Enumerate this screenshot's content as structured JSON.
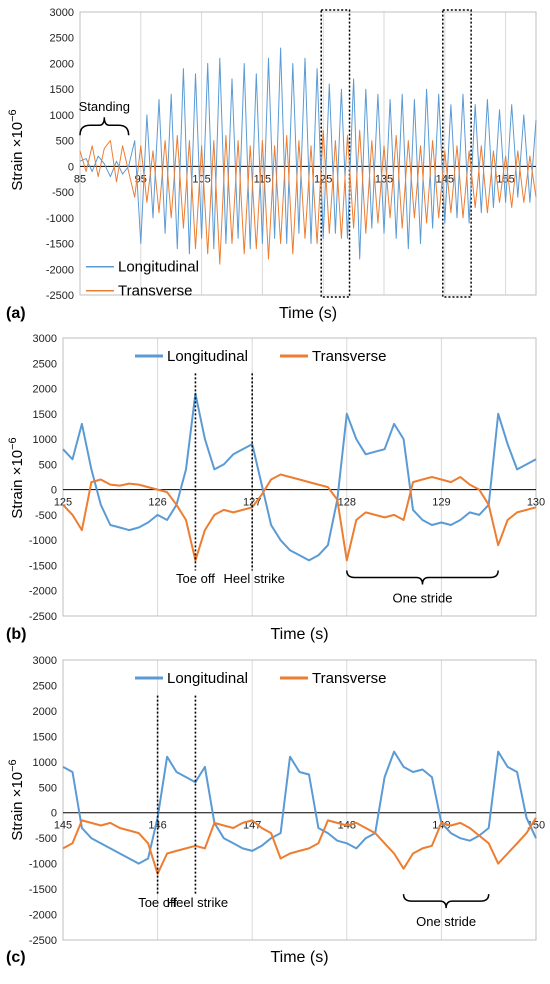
{
  "colors": {
    "longitudinal": "#5b9bd5",
    "transverse": "#ed7d31"
  },
  "chart_data": [
    {
      "panel_label": "(a)",
      "type": "line",
      "ylabel_text": "Strain ×10",
      "ylabel_exp": "−6",
      "xlabel": "Time (s)",
      "xlim": [
        85,
        160
      ],
      "ylim": [
        -2500,
        3000
      ],
      "y_ticks": [
        3000,
        2500,
        2000,
        1500,
        1000,
        500,
        0,
        -500,
        -1000,
        -1500,
        -2000,
        -2500
      ],
      "x_ticks": [
        85,
        95,
        105,
        115,
        125,
        135,
        145,
        155
      ],
      "grid": "vertical",
      "legend": {
        "placement": "bottom-left",
        "entries": [
          "Longitudinal",
          "Transverse"
        ]
      },
      "annotations": {
        "standing": "Standing",
        "standing_range": [
          85,
          93
        ],
        "boxes": [
          [
            125,
            129
          ],
          [
            145,
            149
          ]
        ]
      },
      "series": [
        {
          "name": "Longitudinal",
          "description": "Standing phase near zero (85-93 s), then walking with stride period ~1.3 s; peaks reach 1000-2500",
          "x": [
            85,
            86,
            87,
            88,
            89,
            90,
            91,
            92,
            93,
            94,
            95,
            96,
            97,
            98,
            99,
            100,
            101,
            102,
            103,
            104,
            105,
            106,
            107,
            108,
            109,
            110,
            111,
            112,
            113,
            114,
            115,
            116,
            117,
            118,
            119,
            120,
            121,
            122,
            123,
            124,
            125,
            126,
            127,
            128,
            129,
            130,
            131,
            132,
            133,
            134,
            135,
            136,
            137,
            138,
            139,
            140,
            141,
            142,
            143,
            144,
            145,
            146,
            147,
            148,
            149,
            150,
            151,
            152,
            153,
            154,
            155,
            156,
            157,
            158,
            159,
            160
          ],
          "y": [
            100,
            150,
            -100,
            200,
            50,
            -200,
            100,
            -150,
            0,
            500,
            -1500,
            1000,
            -1000,
            1300,
            -1300,
            1400,
            -1600,
            1900,
            -1700,
            1800,
            -1400,
            2000,
            -1600,
            2100,
            -1500,
            1700,
            -1400,
            2000,
            -1600,
            1800,
            -1500,
            2100,
            -1400,
            2300,
            -1500,
            2000,
            -1300,
            2100,
            -1500,
            1900,
            -1400,
            1600,
            -1300,
            1500,
            -1400,
            1700,
            -1800,
            1500,
            -1200,
            1400,
            -1300,
            1300,
            -1400,
            1400,
            -1600,
            1300,
            -1500,
            1500,
            -1200,
            1400,
            -1100,
            1200,
            -1000,
            1400,
            -1100,
            1200,
            -900,
            1300,
            -800,
            1100,
            -700,
            1200,
            -600,
            1000,
            -700,
            900
          ]
        },
        {
          "name": "Transverse",
          "description": "Standing phase noisy around 0 (up to ~500 at ~90 s), then walking oscillation roughly anti-phase to longitudinal",
          "x": [
            85,
            86,
            87,
            88,
            89,
            90,
            91,
            92,
            93,
            94,
            95,
            96,
            97,
            98,
            99,
            100,
            101,
            102,
            103,
            104,
            105,
            106,
            107,
            108,
            109,
            110,
            111,
            112,
            113,
            114,
            115,
            116,
            117,
            118,
            119,
            120,
            121,
            122,
            123,
            124,
            125,
            126,
            127,
            128,
            129,
            130,
            131,
            132,
            133,
            134,
            135,
            136,
            137,
            138,
            139,
            140,
            141,
            142,
            143,
            144,
            145,
            146,
            147,
            148,
            149,
            150,
            151,
            152,
            153,
            154,
            155,
            156,
            157,
            158,
            159,
            160
          ],
          "y": [
            300,
            -100,
            400,
            -200,
            350,
            500,
            -300,
            400,
            -100,
            -600,
            400,
            -700,
            300,
            -900,
            500,
            -1000,
            600,
            -1200,
            500,
            -1600,
            400,
            -1700,
            500,
            -1900,
            600,
            -1500,
            500,
            -1700,
            400,
            -1600,
            500,
            -1800,
            400,
            -1500,
            600,
            -1700,
            500,
            -1400,
            400,
            -1500,
            700,
            -1300,
            500,
            -1400,
            600,
            -1200,
            700,
            -1300,
            500,
            -1100,
            400,
            -1000,
            600,
            -1200,
            500,
            -1000,
            400,
            -1100,
            500,
            -1000,
            300,
            -900,
            400,
            -1000,
            300,
            -800,
            400,
            -900,
            300,
            -700,
            200,
            -800,
            300,
            -700,
            200,
            -600
          ]
        }
      ]
    },
    {
      "panel_label": "(b)",
      "type": "line",
      "ylabel_text": "Strain ×10",
      "ylabel_exp": "−6",
      "xlabel": "Time (s)",
      "xlim": [
        125,
        130
      ],
      "ylim": [
        -2500,
        3000
      ],
      "y_ticks": [
        3000,
        2500,
        2000,
        1500,
        1000,
        500,
        0,
        -500,
        -1000,
        -1500,
        -2000,
        -2500
      ],
      "x_ticks": [
        125,
        126,
        127,
        128,
        129,
        130
      ],
      "grid": "vertical",
      "legend": {
        "placement": "top",
        "entries": [
          "Longitudinal",
          "Transverse"
        ]
      },
      "annotations": {
        "toe_off": "Toe off",
        "toe_off_x": 126.4,
        "heel_strike": "Heel strike",
        "heel_strike_x": 127.0,
        "stride": "One stride",
        "stride_range": [
          128.0,
          129.6
        ]
      },
      "series": [
        {
          "name": "Longitudinal",
          "x": [
            125.0,
            125.1,
            125.2,
            125.3,
            125.4,
            125.5,
            125.6,
            125.7,
            125.8,
            125.9,
            126.0,
            126.1,
            126.2,
            126.3,
            126.4,
            126.5,
            126.6,
            126.7,
            126.8,
            126.9,
            127.0,
            127.1,
            127.2,
            127.3,
            127.4,
            127.5,
            127.6,
            127.7,
            127.8,
            127.9,
            128.0,
            128.1,
            128.2,
            128.3,
            128.4,
            128.5,
            128.6,
            128.7,
            128.8,
            128.9,
            129.0,
            129.1,
            129.2,
            129.3,
            129.4,
            129.5,
            129.6,
            129.7,
            129.8,
            129.9,
            130.0
          ],
          "y": [
            800,
            600,
            1300,
            400,
            -300,
            -700,
            -750,
            -800,
            -750,
            -650,
            -500,
            -600,
            -300,
            400,
            1900,
            1000,
            400,
            500,
            700,
            800,
            900,
            100,
            -700,
            -1000,
            -1200,
            -1300,
            -1400,
            -1300,
            -1100,
            -200,
            1500,
            1000,
            700,
            750,
            800,
            1300,
            1000,
            -400,
            -600,
            -700,
            -650,
            -700,
            -600,
            -450,
            -500,
            -300,
            1500,
            900,
            400,
            500,
            600
          ]
        },
        {
          "name": "Transverse",
          "x": [
            125.0,
            125.1,
            125.2,
            125.3,
            125.4,
            125.5,
            125.6,
            125.7,
            125.8,
            125.9,
            126.0,
            126.1,
            126.2,
            126.3,
            126.4,
            126.5,
            126.6,
            126.7,
            126.8,
            126.9,
            127.0,
            127.1,
            127.2,
            127.3,
            127.4,
            127.5,
            127.6,
            127.7,
            127.8,
            127.9,
            128.0,
            128.1,
            128.2,
            128.3,
            128.4,
            128.5,
            128.6,
            128.7,
            128.8,
            128.9,
            129.0,
            129.1,
            129.2,
            129.3,
            129.4,
            129.5,
            129.6,
            129.7,
            129.8,
            129.9,
            130.0
          ],
          "y": [
            -300,
            -500,
            -800,
            150,
            200,
            100,
            80,
            120,
            100,
            50,
            0,
            -50,
            -300,
            -600,
            -1400,
            -800,
            -500,
            -400,
            -450,
            -400,
            -350,
            -100,
            200,
            300,
            250,
            200,
            150,
            100,
            50,
            -200,
            -1400,
            -600,
            -450,
            -500,
            -550,
            -500,
            -600,
            150,
            200,
            250,
            200,
            150,
            250,
            100,
            0,
            -300,
            -1100,
            -600,
            -450,
            -400,
            -350
          ]
        }
      ]
    },
    {
      "panel_label": "(c)",
      "type": "line",
      "ylabel_text": "Strain ×10",
      "ylabel_exp": "−6",
      "xlabel": "Time (s)",
      "xlim": [
        145,
        150
      ],
      "ylim": [
        -2500,
        3000
      ],
      "y_ticks": [
        3000,
        2500,
        2000,
        1500,
        1000,
        500,
        0,
        -500,
        -1000,
        -1500,
        -2000,
        -2500
      ],
      "x_ticks": [
        145,
        146,
        147,
        148,
        149,
        150
      ],
      "grid": "vertical",
      "legend": {
        "placement": "top",
        "entries": [
          "Longitudinal",
          "Transverse"
        ]
      },
      "annotations": {
        "toe_off": "Toe off",
        "toe_off_x": 146.0,
        "heel_strike": "Heel strike",
        "heel_strike_x": 146.4,
        "stride": "One stride",
        "stride_range": [
          148.6,
          149.5
        ]
      },
      "series": [
        {
          "name": "Longitudinal",
          "x": [
            145.0,
            145.1,
            145.2,
            145.3,
            145.4,
            145.5,
            145.6,
            145.7,
            145.8,
            145.9,
            146.0,
            146.1,
            146.2,
            146.3,
            146.4,
            146.5,
            146.6,
            146.7,
            146.8,
            146.9,
            147.0,
            147.1,
            147.2,
            147.3,
            147.4,
            147.5,
            147.6,
            147.7,
            147.8,
            147.9,
            148.0,
            148.1,
            148.2,
            148.3,
            148.4,
            148.5,
            148.6,
            148.7,
            148.8,
            148.9,
            149.0,
            149.1,
            149.2,
            149.3,
            149.4,
            149.5,
            149.6,
            149.7,
            149.8,
            149.9,
            150.0
          ],
          "y": [
            900,
            800,
            -300,
            -500,
            -600,
            -700,
            -800,
            -900,
            -1000,
            -900,
            -100,
            1100,
            800,
            700,
            600,
            900,
            -200,
            -500,
            -600,
            -700,
            -750,
            -650,
            -500,
            -400,
            1100,
            800,
            750,
            -300,
            -400,
            -550,
            -600,
            -700,
            -500,
            -400,
            700,
            1200,
            900,
            800,
            850,
            700,
            -200,
            -400,
            -500,
            -550,
            -450,
            -300,
            1200,
            900,
            800,
            -100,
            -500
          ]
        },
        {
          "name": "Transverse",
          "x": [
            145.0,
            145.1,
            145.2,
            145.3,
            145.4,
            145.5,
            145.6,
            145.7,
            145.8,
            145.9,
            146.0,
            146.1,
            146.2,
            146.3,
            146.4,
            146.5,
            146.6,
            146.7,
            146.8,
            146.9,
            147.0,
            147.1,
            147.2,
            147.3,
            147.4,
            147.5,
            147.6,
            147.7,
            147.8,
            147.9,
            148.0,
            148.1,
            148.2,
            148.3,
            148.4,
            148.5,
            148.6,
            148.7,
            148.8,
            148.9,
            149.0,
            149.1,
            149.2,
            149.3,
            149.4,
            149.5,
            149.6,
            149.7,
            149.8,
            149.9,
            150.0
          ],
          "y": [
            -700,
            -600,
            -150,
            -200,
            -250,
            -200,
            -300,
            -350,
            -400,
            -600,
            -1200,
            -800,
            -750,
            -700,
            -650,
            -700,
            -200,
            -250,
            -300,
            -200,
            -150,
            -300,
            -400,
            -900,
            -800,
            -750,
            -700,
            -600,
            -150,
            -200,
            -250,
            -200,
            -300,
            -400,
            -600,
            -800,
            -1100,
            -800,
            -700,
            -650,
            -200,
            -250,
            -200,
            -300,
            -450,
            -600,
            -1000,
            -800,
            -600,
            -400,
            -100
          ]
        }
      ]
    }
  ]
}
